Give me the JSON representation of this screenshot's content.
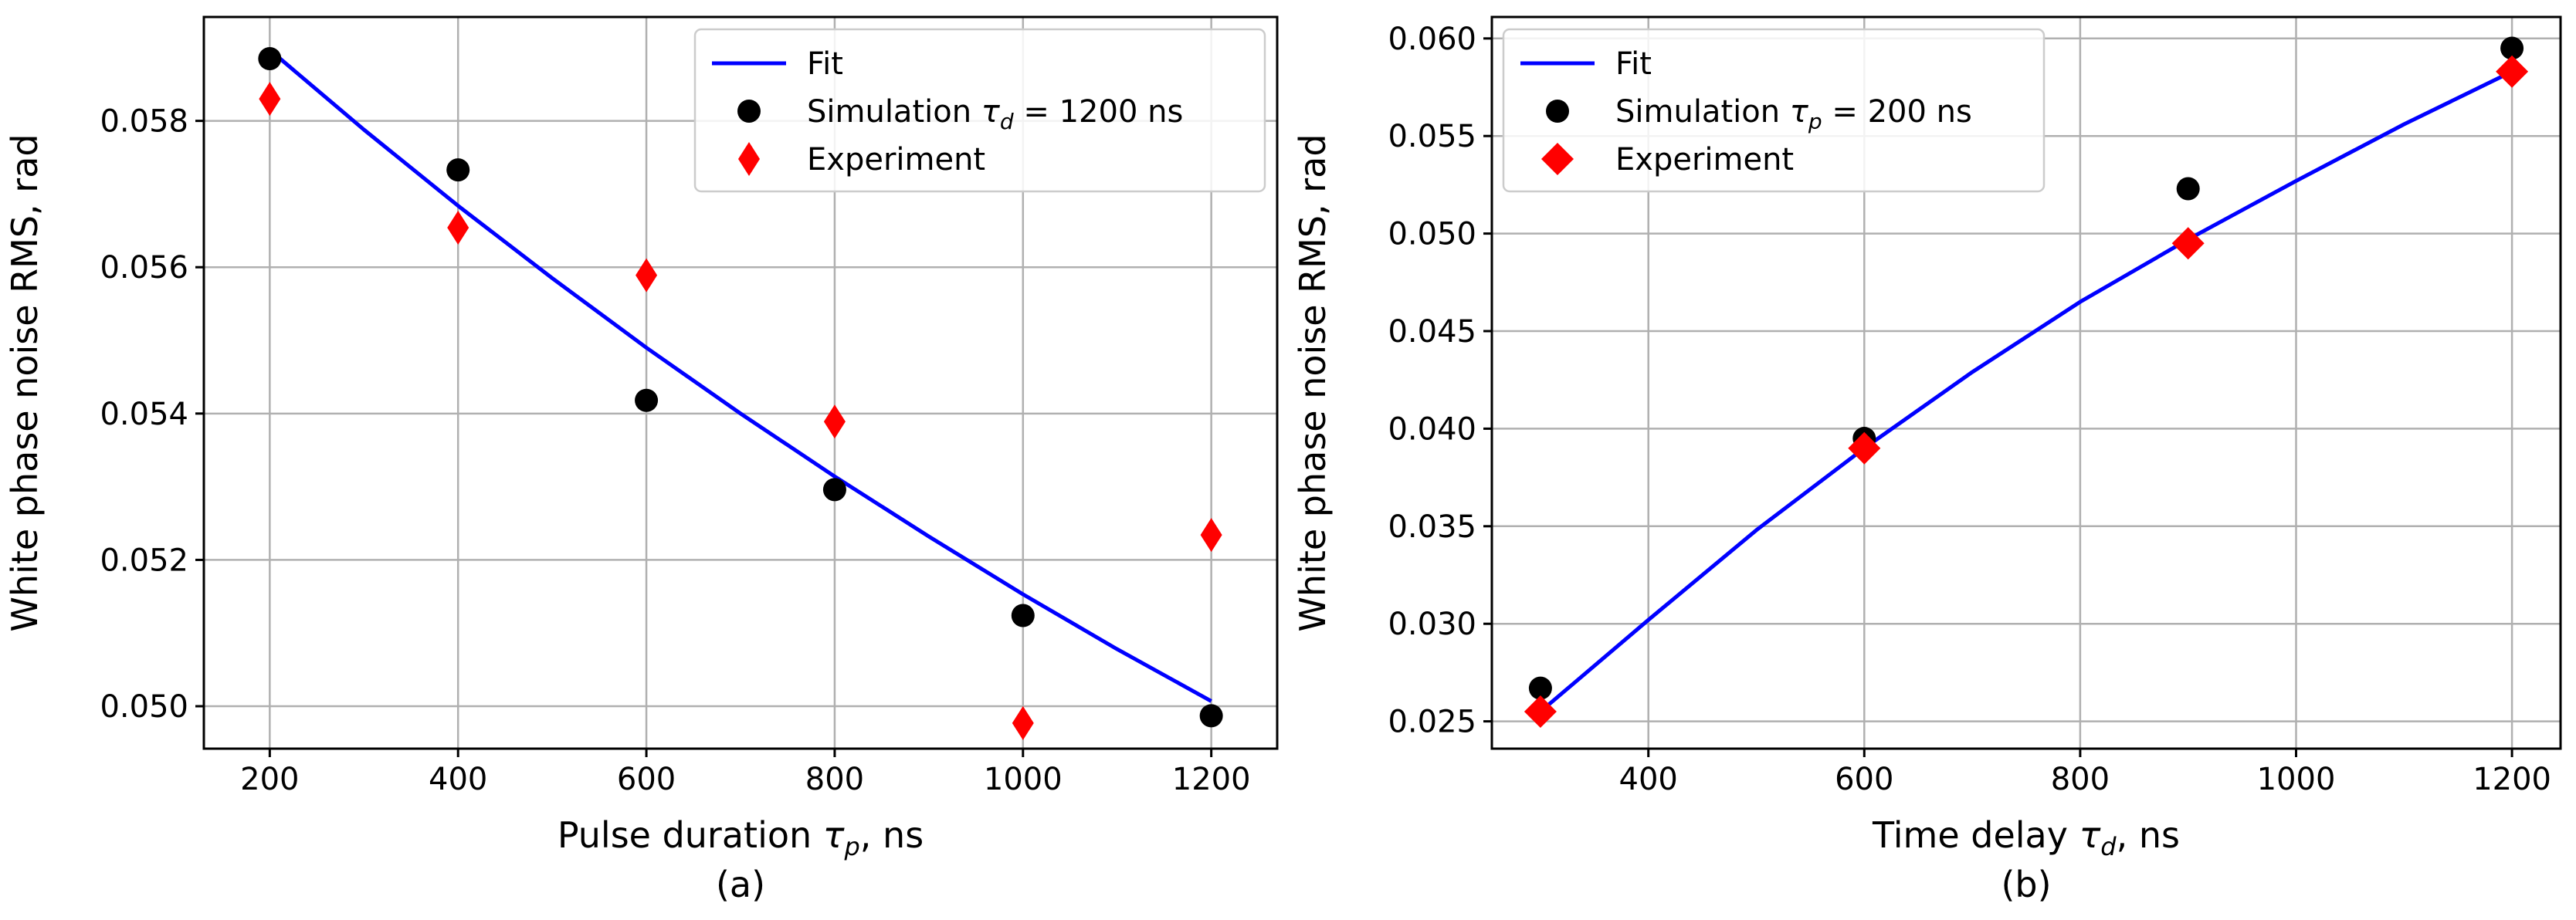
{
  "chart_data": [
    {
      "type": "scatter",
      "panel_label": "(a)",
      "xlabel": "Pulse duration",
      "xlabel_symbol": "τ",
      "xlabel_sub": "p",
      "xlabel_unit": ", ns",
      "ylabel": "White phase noise RMS, rad",
      "xlim": [
        130,
        1270
      ],
      "ylim": [
        0.04942,
        0.05942
      ],
      "xticks": [
        200,
        400,
        600,
        800,
        1000,
        1200
      ],
      "xtick_labels": [
        "200",
        "400",
        "600",
        "800",
        "1000",
        "1200"
      ],
      "yticks": [
        0.05,
        0.052,
        0.054,
        0.056,
        0.058
      ],
      "ytick_labels": [
        "0.050",
        "0.052",
        "0.054",
        "0.056",
        "0.058"
      ],
      "grid": true,
      "legend_position": "top-right",
      "series": [
        {
          "name": "Fit",
          "kind": "line",
          "color": "#0000ff",
          "x": [
            200,
            300,
            400,
            500,
            600,
            700,
            800,
            900,
            1000,
            1100,
            1200
          ],
          "y": [
            0.05897,
            0.05788,
            0.05684,
            0.05585,
            0.0549,
            0.054,
            0.05314,
            0.05232,
            0.05153,
            0.05078,
            0.05007
          ]
        },
        {
          "name": "Simulation",
          "legend_symbol": "τ",
          "legend_sub": "d",
          "legend_suffix": "= 1200 ns",
          "kind": "scatter",
          "marker": "circle",
          "color": "#000000",
          "x": [
            200,
            400,
            600,
            800,
            1000,
            1200
          ],
          "y": [
            0.05885,
            0.05733,
            0.05418,
            0.05296,
            0.05124,
            0.04987
          ]
        },
        {
          "name": "Experiment",
          "kind": "scatter",
          "marker": "thin_diamond",
          "color": "#ff0000",
          "x": [
            200,
            400,
            600,
            800,
            1000,
            1200
          ],
          "y": [
            0.0583,
            0.05654,
            0.05589,
            0.05389,
            0.04977,
            0.05234
          ]
        }
      ]
    },
    {
      "type": "scatter",
      "panel_label": "(b)",
      "xlabel": "Time delay",
      "xlabel_symbol": "τ",
      "xlabel_sub": "d",
      "xlabel_unit": ", ns",
      "ylabel": "White phase noise RMS, rad",
      "xlim": [
        255,
        1245
      ],
      "ylim": [
        0.0236,
        0.0611
      ],
      "xticks": [
        400,
        600,
        800,
        1000,
        1200
      ],
      "xtick_labels": [
        "400",
        "600",
        "800",
        "1000",
        "1200"
      ],
      "yticks": [
        0.025,
        0.03,
        0.035,
        0.04,
        0.045,
        0.05,
        0.055,
        0.06
      ],
      "ytick_labels": [
        "0.025",
        "0.030",
        "0.035",
        "0.040",
        "0.045",
        "0.050",
        "0.055",
        "0.060"
      ],
      "grid": true,
      "legend_position": "top-left",
      "series": [
        {
          "name": "Fit",
          "kind": "line",
          "color": "#0000ff",
          "x": [
            300,
            400,
            500,
            600,
            700,
            800,
            900,
            1000,
            1100,
            1200
          ],
          "y": [
            0.0255,
            0.0302,
            0.0348,
            0.039,
            0.0429,
            0.0465,
            0.0497,
            0.0527,
            0.0556,
            0.0583
          ]
        },
        {
          "name": "Simulation",
          "legend_symbol": "τ",
          "legend_sub": "p",
          "legend_suffix": "= 200 ns",
          "kind": "scatter",
          "marker": "circle",
          "color": "#000000",
          "x": [
            300,
            600,
            900,
            1200
          ],
          "y": [
            0.0267,
            0.0395,
            0.0523,
            0.0595
          ]
        },
        {
          "name": "Experiment",
          "kind": "scatter",
          "marker": "diamond",
          "color": "#ff0000",
          "x": [
            300,
            600,
            900,
            1200
          ],
          "y": [
            0.0255,
            0.039,
            0.0495,
            0.0583
          ]
        }
      ]
    }
  ]
}
